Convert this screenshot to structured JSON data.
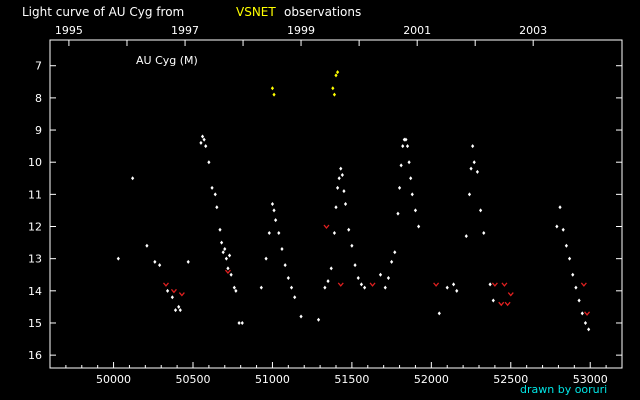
{
  "title": {
    "prefix": "Light curve of AU Cyg from",
    "source": "VSNET",
    "suffix": "observations"
  },
  "credit": "drawn by ooruri",
  "colors": {
    "background": "#000000",
    "frame": "#ffffff",
    "visual": "#ffffff",
    "fainter_than": "#e02020",
    "other": "#ffff00",
    "title_highlight": "#ffff00",
    "credit": "#00e5e5"
  },
  "chart_data": {
    "type": "scatter",
    "title": "Light curve of AU Cyg from VSNET observations",
    "annotation": "AU Cyg (M)",
    "xlabel": "",
    "ylabel": "",
    "xlim": [
      49600,
      53200
    ],
    "ylim": [
      16.4,
      6.2
    ],
    "y_inverted": true,
    "x_ticks": [
      50000,
      50500,
      51000,
      51500,
      52000,
      52500,
      53000
    ],
    "y_ticks": [
      7,
      8,
      9,
      10,
      11,
      12,
      13,
      14,
      15,
      16
    ],
    "top_axis_years": [
      {
        "label": "1995",
        "jd": 49719
      },
      {
        "label": "1997",
        "jd": 50450
      },
      {
        "label": "1999",
        "jd": 51180
      },
      {
        "label": "2001",
        "jd": 51911
      },
      {
        "label": "2003",
        "jd": 52641
      }
    ],
    "grid": false,
    "legend": "none",
    "series": [
      {
        "kind": "visual",
        "color": "#ffffff",
        "marker": "diamond",
        "points": [
          [
            50030,
            13.0
          ],
          [
            50120,
            10.5
          ],
          [
            50210,
            12.6
          ],
          [
            50260,
            13.1
          ],
          [
            50290,
            13.2
          ],
          [
            50340,
            14.0
          ],
          [
            50370,
            14.2
          ],
          [
            50390,
            14.6
          ],
          [
            50410,
            14.5
          ],
          [
            50420,
            14.6
          ],
          [
            50470,
            13.1
          ],
          [
            50550,
            9.4
          ],
          [
            50560,
            9.2
          ],
          [
            50570,
            9.3
          ],
          [
            50580,
            9.5
          ],
          [
            50600,
            10.0
          ],
          [
            50620,
            10.8
          ],
          [
            50640,
            11.0
          ],
          [
            50650,
            11.4
          ],
          [
            50670,
            12.1
          ],
          [
            50680,
            12.5
          ],
          [
            50690,
            12.8
          ],
          [
            50700,
            12.7
          ],
          [
            50710,
            13.0
          ],
          [
            50720,
            13.3
          ],
          [
            50730,
            12.9
          ],
          [
            50740,
            13.5
          ],
          [
            50760,
            13.9
          ],
          [
            50770,
            14.0
          ],
          [
            50790,
            15.0
          ],
          [
            50810,
            15.0
          ],
          [
            50930,
            13.9
          ],
          [
            50960,
            13.0
          ],
          [
            50980,
            12.2
          ],
          [
            51000,
            11.3
          ],
          [
            51010,
            11.5
          ],
          [
            51020,
            11.8
          ],
          [
            51040,
            12.2
          ],
          [
            51060,
            12.7
          ],
          [
            51080,
            13.2
          ],
          [
            51100,
            13.6
          ],
          [
            51120,
            13.9
          ],
          [
            51140,
            14.2
          ],
          [
            51180,
            14.8
          ],
          [
            51290,
            14.9
          ],
          [
            51330,
            13.9
          ],
          [
            51350,
            13.7
          ],
          [
            51370,
            13.3
          ],
          [
            51390,
            12.2
          ],
          [
            51400,
            11.4
          ],
          [
            51410,
            10.8
          ],
          [
            51420,
            10.5
          ],
          [
            51430,
            10.2
          ],
          [
            51440,
            10.4
          ],
          [
            51450,
            10.9
          ],
          [
            51460,
            11.3
          ],
          [
            51480,
            12.1
          ],
          [
            51500,
            12.6
          ],
          [
            51520,
            13.2
          ],
          [
            51540,
            13.6
          ],
          [
            51560,
            13.8
          ],
          [
            51580,
            13.9
          ],
          [
            51680,
            13.5
          ],
          [
            51710,
            13.9
          ],
          [
            51730,
            13.6
          ],
          [
            51750,
            13.1
          ],
          [
            51770,
            12.8
          ],
          [
            51790,
            11.6
          ],
          [
            51800,
            10.8
          ],
          [
            51810,
            10.1
          ],
          [
            51820,
            9.5
          ],
          [
            51830,
            9.3
          ],
          [
            51840,
            9.3
          ],
          [
            51850,
            9.5
          ],
          [
            51860,
            10.0
          ],
          [
            51870,
            10.5
          ],
          [
            51880,
            11.0
          ],
          [
            51900,
            11.5
          ],
          [
            51920,
            12.0
          ],
          [
            52050,
            14.7
          ],
          [
            52100,
            13.9
          ],
          [
            52140,
            13.8
          ],
          [
            52160,
            14.0
          ],
          [
            52220,
            12.3
          ],
          [
            52240,
            11.0
          ],
          [
            52250,
            10.2
          ],
          [
            52260,
            9.5
          ],
          [
            52270,
            10.0
          ],
          [
            52290,
            10.3
          ],
          [
            52310,
            11.5
          ],
          [
            52330,
            12.2
          ],
          [
            52370,
            13.8
          ],
          [
            52390,
            14.3
          ],
          [
            52790,
            12.0
          ],
          [
            52810,
            11.4
          ],
          [
            52830,
            12.1
          ],
          [
            52850,
            12.6
          ],
          [
            52870,
            13.0
          ],
          [
            52890,
            13.5
          ],
          [
            52910,
            13.9
          ],
          [
            52930,
            14.3
          ],
          [
            52950,
            14.7
          ],
          [
            52970,
            15.0
          ],
          [
            52990,
            15.2
          ]
        ]
      },
      {
        "kind": "fainter_than",
        "color": "#e02020",
        "marker": "v",
        "points": [
          [
            50330,
            13.8
          ],
          [
            50380,
            14.0
          ],
          [
            50430,
            14.1
          ],
          [
            50720,
            13.4
          ],
          [
            51340,
            12.0
          ],
          [
            51430,
            13.8
          ],
          [
            51630,
            13.8
          ],
          [
            52030,
            13.8
          ],
          [
            52400,
            13.8
          ],
          [
            52440,
            14.4
          ],
          [
            52460,
            13.8
          ],
          [
            52480,
            14.4
          ],
          [
            52500,
            14.1
          ],
          [
            52960,
            13.8
          ],
          [
            52980,
            14.7
          ]
        ]
      },
      {
        "kind": "other",
        "color": "#ffff00",
        "marker": "diamond",
        "points": [
          [
            51000,
            7.7
          ],
          [
            51010,
            7.9
          ],
          [
            51380,
            7.7
          ],
          [
            51390,
            7.9
          ],
          [
            51400,
            7.3
          ],
          [
            51410,
            7.2
          ]
        ]
      }
    ]
  }
}
